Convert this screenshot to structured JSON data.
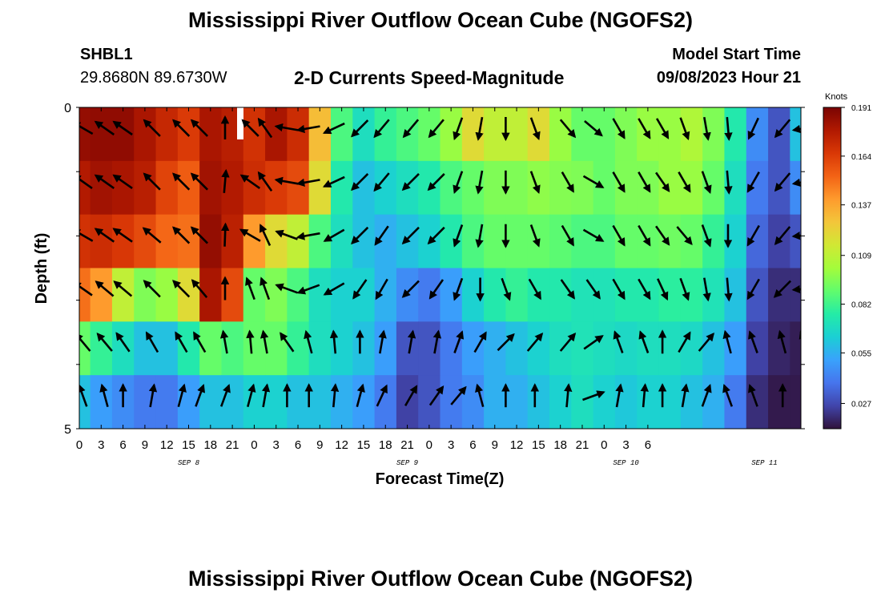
{
  "header": {
    "title": "Mississippi River Outflow Ocean Cube (NGOFS2)",
    "station_id": "SHBL1",
    "station_coords": "29.8680N  89.6730W",
    "subtitle": "2-D Currents Speed-Magnitude",
    "model_start_label": "Model Start Time",
    "model_start_value": "09/08/2023 Hour 21"
  },
  "footer": {
    "title": "Mississippi River Outflow Ocean Cube (NGOFS2)"
  },
  "colors": {
    "colormap": [
      "#30123b",
      "#4145ab",
      "#4675ed",
      "#39a2fc",
      "#1bcfd4",
      "#24eca6",
      "#61fc6c",
      "#a4fc3b",
      "#d1e834",
      "#f3c63a",
      "#fe9b2d",
      "#f36315",
      "#d93806",
      "#b11901",
      "#7a0403"
    ],
    "arrow": "#000000"
  },
  "chart_data": {
    "type": "heatmap",
    "xlabel": "Forecast Time(Z)",
    "ylabel": "Depth (ft)",
    "x_hours_range": [
      0,
      99
    ],
    "y_tick_labels": [
      {
        "depth": 0,
        "label": "0"
      },
      {
        "depth": 5,
        "label": "5"
      }
    ],
    "x_tick_labels": [
      "0",
      "3",
      "6",
      "9",
      "12",
      "15",
      "18",
      "21",
      "0",
      "3",
      "6",
      "9",
      "12",
      "15",
      "18",
      "21",
      "0",
      "3",
      "6",
      "9",
      "12",
      "15",
      "18",
      "21",
      "0",
      "3",
      "6"
    ],
    "date_labels": [
      {
        "hour": 15,
        "label": "SEP 8"
      },
      {
        "hour": 45,
        "label": "SEP 9"
      },
      {
        "hour": 75,
        "label": "SEP 10"
      },
      {
        "hour": 94,
        "label": "SEP 11"
      }
    ],
    "colorbar": {
      "label": "Knots",
      "min": 0.013,
      "max": 0.191,
      "ticks": [
        "0.191",
        "0.164",
        "0.137",
        "0.109",
        "0.082",
        "0.055",
        "0.027"
      ],
      "tick_values": [
        0.191,
        0.164,
        0.137,
        0.109,
        0.082,
        0.055,
        0.027
      ]
    },
    "hours": [
      0,
      3,
      6,
      9,
      12,
      15,
      18,
      21,
      24,
      27,
      30,
      33,
      36,
      39,
      42,
      45,
      48,
      51,
      54,
      57,
      60,
      63,
      66,
      69,
      72,
      75,
      78,
      81,
      84,
      87,
      90,
      93,
      96,
      99
    ],
    "rows": [
      {
        "depth": 0,
        "values": [
          0.185,
          0.186,
          0.186,
          0.18,
          0.172,
          0.165,
          0.18,
          0.176,
          0.168,
          0.18,
          0.17,
          0.13,
          0.085,
          0.07,
          0.08,
          0.085,
          0.09,
          0.1,
          0.12,
          0.11,
          0.11,
          0.12,
          0.1,
          0.09,
          0.09,
          0.095,
          0.1,
          0.1,
          0.105,
          0.095,
          0.075,
          0.045,
          0.03,
          0.06
        ]
      },
      {
        "depth": 1,
        "values": [
          0.178,
          0.182,
          0.18,
          0.176,
          0.162,
          0.155,
          0.182,
          0.178,
          0.17,
          0.165,
          0.16,
          0.12,
          0.075,
          0.06,
          0.065,
          0.07,
          0.075,
          0.085,
          0.09,
          0.095,
          0.095,
          0.098,
          0.096,
          0.095,
          0.09,
          0.095,
          0.095,
          0.1,
          0.1,
          0.09,
          0.07,
          0.04,
          0.03,
          0.045
        ]
      },
      {
        "depth": 2,
        "values": [
          0.168,
          0.17,
          0.166,
          0.16,
          0.152,
          0.15,
          0.185,
          0.175,
          0.14,
          0.12,
          0.11,
          0.085,
          0.07,
          0.06,
          0.055,
          0.06,
          0.065,
          0.075,
          0.085,
          0.09,
          0.09,
          0.09,
          0.088,
          0.085,
          0.085,
          0.09,
          0.09,
          0.092,
          0.09,
          0.08,
          0.065,
          0.035,
          0.025,
          0.03
        ]
      },
      {
        "depth": 3,
        "values": [
          0.15,
          0.14,
          0.11,
          0.095,
          0.1,
          0.12,
          0.18,
          0.16,
          0.09,
          0.095,
          0.085,
          0.07,
          0.065,
          0.065,
          0.055,
          0.045,
          0.04,
          0.05,
          0.065,
          0.075,
          0.08,
          0.075,
          0.075,
          0.072,
          0.072,
          0.075,
          0.075,
          0.078,
          0.078,
          0.072,
          0.06,
          0.03,
          0.02,
          0.02
        ]
      },
      {
        "depth": 4,
        "values": [
          0.09,
          0.08,
          0.07,
          0.06,
          0.06,
          0.075,
          0.09,
          0.085,
          0.09,
          0.09,
          0.08,
          0.07,
          0.065,
          0.06,
          0.05,
          0.03,
          0.03,
          0.04,
          0.05,
          0.055,
          0.06,
          0.065,
          0.07,
          0.072,
          0.07,
          0.068,
          0.07,
          0.07,
          0.068,
          0.06,
          0.05,
          0.025,
          0.018,
          0.016
        ]
      },
      {
        "depth": 5,
        "values": [
          0.06,
          0.05,
          0.045,
          0.04,
          0.04,
          0.05,
          0.06,
          0.06,
          0.065,
          0.065,
          0.06,
          0.06,
          0.055,
          0.05,
          0.04,
          0.025,
          0.03,
          0.04,
          0.045,
          0.055,
          0.055,
          0.06,
          0.065,
          0.07,
          0.065,
          0.062,
          0.065,
          0.065,
          0.06,
          0.055,
          0.04,
          0.02,
          0.015,
          0.015
        ]
      }
    ],
    "vector_hours": [
      0.5,
      3.5,
      6,
      10,
      14,
      16.5,
      20,
      23.5,
      25.5,
      28.5,
      31.5,
      35,
      38.5,
      41.5,
      45.5,
      49,
      52,
      55,
      58.5,
      62.5,
      67,
      70.5,
      74,
      77.5,
      80,
      83,
      86,
      89,
      92.5,
      96.5,
      99.5
    ],
    "vector_angles": [
      [
        300,
        305,
        305,
        315,
        315,
        315,
        0,
        315,
        325,
        280,
        260,
        245,
        225,
        220,
        220,
        220,
        200,
        190,
        180,
        160,
        140,
        130,
        150,
        150,
        150,
        160,
        170,
        175,
        205,
        220,
        260
      ],
      [
        305,
        305,
        305,
        315,
        315,
        315,
        5,
        305,
        325,
        280,
        260,
        245,
        225,
        220,
        225,
        225,
        200,
        190,
        180,
        160,
        150,
        120,
        150,
        150,
        145,
        150,
        160,
        175,
        210,
        220,
        260
      ],
      [
        300,
        305,
        305,
        310,
        315,
        315,
        2,
        300,
        335,
        290,
        260,
        240,
        225,
        215,
        225,
        225,
        200,
        190,
        180,
        160,
        150,
        120,
        150,
        150,
        145,
        140,
        160,
        180,
        210,
        220,
        265
      ],
      [
        305,
        310,
        310,
        315,
        315,
        320,
        0,
        340,
        340,
        290,
        250,
        240,
        215,
        210,
        225,
        215,
        200,
        180,
        160,
        150,
        145,
        145,
        150,
        150,
        155,
        160,
        170,
        175,
        210,
        225,
        265
      ],
      [
        320,
        320,
        325,
        330,
        330,
        330,
        350,
        355,
        350,
        325,
        345,
        355,
        0,
        10,
        10,
        10,
        20,
        30,
        45,
        40,
        40,
        55,
        340,
        340,
        0,
        30,
        40,
        345,
        340,
        345,
        340
      ],
      [
        340,
        345,
        0,
        10,
        15,
        20,
        20,
        15,
        10,
        0,
        0,
        5,
        15,
        25,
        30,
        35,
        40,
        345,
        0,
        0,
        5,
        70,
        10,
        5,
        0,
        10,
        20,
        340,
        340,
        0,
        10
      ]
    ]
  }
}
